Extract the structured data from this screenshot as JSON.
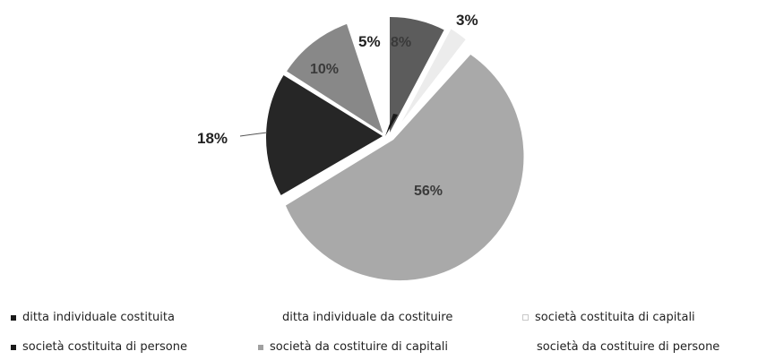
{
  "chart_data": {
    "type": "pie",
    "slices": [
      {
        "name": "ditta individuale costituita",
        "value": 8,
        "label": "8%",
        "color": "#5c5c5c"
      },
      {
        "name": "ditta individuale da costituire",
        "value": 0,
        "label": "",
        "color": "#ffffff"
      },
      {
        "name": "società costituita di capitali",
        "value": 3,
        "label": "3%",
        "color": "#ececec"
      },
      {
        "name": "società da costituire di capitali",
        "value": 56,
        "label": "56%",
        "color": "#a9a9a9"
      },
      {
        "name": "società costituita di persone",
        "value": 18,
        "label": "18%",
        "color": "#262626"
      },
      {
        "name": "società da costituire di capitali",
        "value": 10,
        "label": "10%",
        "color": "#888888"
      },
      {
        "name": "società da costituire di persone",
        "value": 5,
        "label": "5%",
        "color": "#ffffff"
      }
    ],
    "legend": [
      {
        "label": "ditta individuale costituita",
        "color": "#1a1a1a",
        "marker": "square"
      },
      {
        "label": "ditta individuale da costituire",
        "color": "#ffffff",
        "marker": "none"
      },
      {
        "label": "società costituita di capitali",
        "color": "#c8c8c8",
        "marker": "open-square"
      },
      {
        "label": "società costituita di persone",
        "color": "#1a1a1a",
        "marker": "square"
      },
      {
        "label": "società da costituire di capitali",
        "color": "#a0a0a0",
        "marker": "square"
      },
      {
        "label": "società da costituire di persone",
        "color": "#ffffff",
        "marker": "none"
      }
    ],
    "legend_position": "bottom"
  }
}
